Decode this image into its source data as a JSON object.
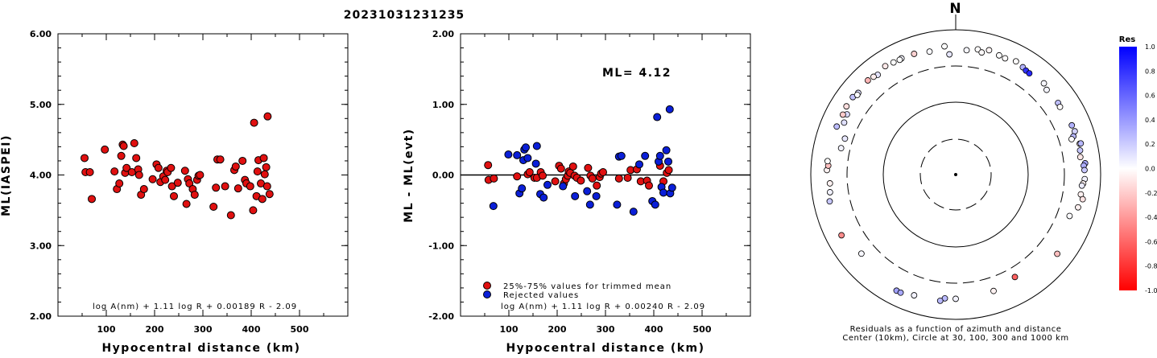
{
  "title": "20231031231235",
  "chart_data": [
    {
      "type": "scatter",
      "xlabel": "Hypocentral distance (km)",
      "ylabel": "ML(IASPEI)",
      "xlim": [
        0,
        600
      ],
      "ylim": [
        2.0,
        6.0
      ],
      "xticks": [
        "100",
        "200",
        "300",
        "400",
        "500"
      ],
      "yticks": [
        "2.00",
        "3.00",
        "4.00",
        "5.00",
        "6.00"
      ],
      "formula": "log A(nm) + 1.11 log R + 0.00189 R - 2.09",
      "series": [
        {
          "color": "#e01010",
          "points": [
            [
              55,
              4.24
            ],
            [
              57,
              4.04
            ],
            [
              66,
              4.04
            ],
            [
              70,
              3.66
            ],
            [
              97,
              4.36
            ],
            [
              117,
              4.05
            ],
            [
              122,
              3.8
            ],
            [
              127,
              3.88
            ],
            [
              131,
              4.27
            ],
            [
              134,
              4.43
            ],
            [
              136,
              4.41
            ],
            [
              139,
              4.03
            ],
            [
              142,
              4.1
            ],
            [
              153,
              4.04
            ],
            [
              158,
              4.45
            ],
            [
              162,
              4.24
            ],
            [
              166,
              4.08
            ],
            [
              168,
              4.0
            ],
            [
              172,
              3.72
            ],
            [
              178,
              3.8
            ],
            [
              196,
              3.94
            ],
            [
              204,
              4.15
            ],
            [
              208,
              4.1
            ],
            [
              212,
              3.9
            ],
            [
              218,
              3.98
            ],
            [
              222,
              3.93
            ],
            [
              225,
              4.06
            ],
            [
              227,
              4.04
            ],
            [
              234,
              4.1
            ],
            [
              236,
              3.84
            ],
            [
              240,
              3.7
            ],
            [
              248,
              3.89
            ],
            [
              263,
              4.06
            ],
            [
              266,
              3.59
            ],
            [
              269,
              3.94
            ],
            [
              272,
              3.88
            ],
            [
              279,
              3.8
            ],
            [
              283,
              3.72
            ],
            [
              288,
              3.93
            ],
            [
              291,
              3.99
            ],
            [
              294,
              4.0
            ],
            [
              322,
              3.55
            ],
            [
              327,
              3.82
            ],
            [
              330,
              4.22
            ],
            [
              336,
              4.22
            ],
            [
              346,
              3.84
            ],
            [
              358,
              3.43
            ],
            [
              365,
              4.07
            ],
            [
              368,
              4.12
            ],
            [
              373,
              3.81
            ],
            [
              382,
              4.2
            ],
            [
              387,
              3.93
            ],
            [
              390,
              3.88
            ],
            [
              398,
              3.84
            ],
            [
              404,
              3.5
            ],
            [
              406,
              4.74
            ],
            [
              411,
              3.7
            ],
            [
              413,
              4.05
            ],
            [
              415,
              4.21
            ],
            [
              420,
              3.88
            ],
            [
              423,
              3.66
            ],
            [
              426,
              4.24
            ],
            [
              428,
              4.01
            ],
            [
              431,
              4.11
            ],
            [
              433,
              3.84
            ],
            [
              434,
              4.83
            ],
            [
              438,
              3.73
            ]
          ]
        }
      ]
    },
    {
      "type": "scatter",
      "xlabel": "Hypocentral distance (km)",
      "ylabel": "ML - ML(evt)",
      "xlim": [
        0,
        600
      ],
      "ylim": [
        -2.0,
        2.0
      ],
      "xticks": [
        "100",
        "200",
        "300",
        "400",
        "500"
      ],
      "yticks": [
        "-2.00",
        "-1.00",
        "0.00",
        "1.00",
        "2.00"
      ],
      "annotation": "ML= 4.12",
      "formula": "log A(nm) + 1.11 log R + 0.00240 R - 2.09",
      "legend": [
        {
          "label": "25%-75% values for trimmed mean",
          "color": "#e01010"
        },
        {
          "label": "Rejected values",
          "color": "#0a1fd8"
        }
      ],
      "series": [
        {
          "name": "25%-75% values for trimmed mean",
          "color": "#e01010",
          "points": [
            [
              57,
              0.14
            ],
            [
              58,
              -0.07
            ],
            [
              69,
              -0.05
            ],
            [
              117,
              -0.02
            ],
            [
              139,
              0.01
            ],
            [
              143,
              0.04
            ],
            [
              153,
              -0.04
            ],
            [
              158,
              -0.04
            ],
            [
              166,
              0.04
            ],
            [
              170,
              -0.01
            ],
            [
              196,
              -0.09
            ],
            [
              204,
              0.13
            ],
            [
              208,
              0.09
            ],
            [
              214,
              -0.12
            ],
            [
              218,
              -0.06
            ],
            [
              222,
              -0.01
            ],
            [
              224,
              0.05
            ],
            [
              227,
              0.03
            ],
            [
              233,
              0.12
            ],
            [
              236,
              -0.01
            ],
            [
              241,
              -0.04
            ],
            [
              249,
              -0.08
            ],
            [
              264,
              0.1
            ],
            [
              269,
              -0.01
            ],
            [
              273,
              -0.05
            ],
            [
              282,
              -0.15
            ],
            [
              288,
              -0.03
            ],
            [
              291,
              0.02
            ],
            [
              295,
              0.04
            ],
            [
              328,
              -0.05
            ],
            [
              346,
              -0.04
            ],
            [
              352,
              0.07
            ],
            [
              365,
              0.08
            ],
            [
              373,
              -0.09
            ],
            [
              386,
              -0.08
            ],
            [
              390,
              -0.15
            ],
            [
              413,
              0.13
            ],
            [
              420,
              -0.09
            ],
            [
              427,
              0.03
            ],
            [
              431,
              0.07
            ]
          ]
        },
        {
          "name": "Rejected values",
          "color": "#0a1fd8",
          "points": [
            [
              68,
              -0.44
            ],
            [
              99,
              0.29
            ],
            [
              117,
              0.28
            ],
            [
              122,
              -0.26
            ],
            [
              127,
              -0.19
            ],
            [
              130,
              0.21
            ],
            [
              132,
              0.36
            ],
            [
              135,
              0.39
            ],
            [
              139,
              0.24
            ],
            [
              156,
              0.16
            ],
            [
              158,
              0.41
            ],
            [
              165,
              -0.27
            ],
            [
              172,
              -0.32
            ],
            [
              180,
              -0.14
            ],
            [
              212,
              -0.16
            ],
            [
              237,
              -0.3
            ],
            [
              262,
              -0.23
            ],
            [
              268,
              -0.42
            ],
            [
              281,
              -0.3
            ],
            [
              324,
              -0.42
            ],
            [
              328,
              0.26
            ],
            [
              333,
              0.27
            ],
            [
              358,
              -0.52
            ],
            [
              370,
              0.15
            ],
            [
              382,
              0.27
            ],
            [
              397,
              -0.37
            ],
            [
              403,
              -0.42
            ],
            [
              407,
              0.82
            ],
            [
              410,
              0.19
            ],
            [
              413,
              0.27
            ],
            [
              416,
              -0.17
            ],
            [
              420,
              -0.25
            ],
            [
              426,
              0.35
            ],
            [
              430,
              0.19
            ],
            [
              433,
              0.93
            ],
            [
              434,
              -0.26
            ],
            [
              438,
              -0.18
            ]
          ]
        }
      ]
    },
    {
      "type": "scatter",
      "subtype": "polar",
      "north_label": "N",
      "caption_line1": "Residuals as a function of azimuth and distance",
      "caption_line2": "Center (10km), Circle at 30, 100, 300 and 1000 km",
      "rings_km": [
        30,
        100,
        300,
        1000
      ],
      "colorbar": {
        "title": "Res",
        "ticks": [
          "1.0",
          "0.8",
          "0.6",
          "0.4",
          "0.2",
          "0.0",
          "-0.2",
          "-0.4",
          "-0.6",
          "-0.8",
          "-1.0"
        ],
        "high_color": "#0000ff",
        "low_color": "#ff0000"
      },
      "points_azimuth_dist_residual": [
        [
          -77,
          420,
          0.05
        ],
        [
          -72,
          405,
          0.09
        ],
        [
          -65,
          500,
          0.12
        ],
        [
          -61,
          520,
          0.14
        ],
        [
          -50,
          570,
          0.13
        ],
        [
          -38,
          560,
          0.11
        ],
        [
          -25,
          590,
          0.04
        ],
        [
          -12,
          545,
          0.02
        ],
        [
          -5,
          600,
          0.0
        ],
        [
          -3,
          460,
          0.1
        ],
        [
          5,
          530,
          0.03
        ],
        [
          10,
          570,
          -0.01
        ],
        [
          12,
          530,
          -0.02
        ],
        [
          15,
          600,
          -0.04
        ],
        [
          20,
          565,
          0.0
        ],
        [
          23,
          555,
          -0.01
        ],
        [
          28,
          590,
          -0.01
        ],
        [
          32,
          560,
          0.3
        ],
        [
          34,
          540,
          0.8
        ],
        [
          36,
          535,
          0.85
        ],
        [
          44,
          565,
          0.03
        ],
        [
          47,
          520,
          0.04
        ],
        [
          55,
          530,
          0.25
        ],
        [
          57,
          520,
          -0.01
        ],
        [
          67,
          550,
          0.3
        ],
        [
          70,
          560,
          0.18
        ],
        [
          72,
          510,
          0.28
        ],
        [
          73,
          470,
          -0.01
        ],
        [
          76,
          580,
          -0.08
        ],
        [
          76,
          600,
          0.28
        ],
        [
          79,
          560,
          0.22
        ],
        [
          82,
          545,
          -0.09
        ],
        [
          85,
          620,
          0.35
        ],
        [
          86,
          590,
          0.32
        ],
        [
          88,
          600,
          0.22
        ],
        [
          92,
          605,
          0.05
        ],
        [
          94,
          580,
          -0.05
        ],
        [
          95,
          560,
          0.08
        ],
        [
          99,
          560,
          -0.06
        ],
        [
          101,
          610,
          -0.11
        ],
        [
          105,
          560,
          -0.06
        ],
        [
          110,
          470,
          0.01
        ],
        [
          128,
          600,
          -0.25
        ],
        [
          150,
          430,
          -0.62
        ],
        [
          162,
          490,
          -0.05
        ],
        [
          180,
          520,
          0.05
        ],
        [
          185,
          520,
          0.27
        ],
        [
          187,
          570,
          0.28
        ],
        [
          199,
          580,
          0.05
        ],
        [
          207,
          630,
          0.37
        ],
        [
          205,
          630,
          0.34
        ],
        [
          230,
          500,
          0.03
        ],
        [
          242,
          610,
          -0.45
        ],
        [
          258,
          600,
          0.22
        ],
        [
          262,
          565,
          0.05
        ],
        [
          266,
          550,
          -0.05
        ],
        [
          272,
          600,
          -0.05
        ],
        [
          274,
          580,
          -0.25
        ],
        [
          276,
          600,
          0.0
        ],
        [
          292,
          590,
          0.26
        ],
        [
          298,
          580,
          -0.21
        ],
        [
          302,
          600,
          -0.13
        ],
        [
          307,
          600,
          0.24
        ],
        [
          309,
          560,
          0.01
        ],
        [
          317,
          600,
          -0.29
        ],
        [
          320,
          580,
          -0.07
        ],
        [
          327,
          610,
          -0.09
        ],
        [
          331,
          590,
          0.0
        ],
        [
          334,
          580,
          0.0
        ],
        [
          341,
          580,
          -0.18
        ]
      ]
    }
  ]
}
